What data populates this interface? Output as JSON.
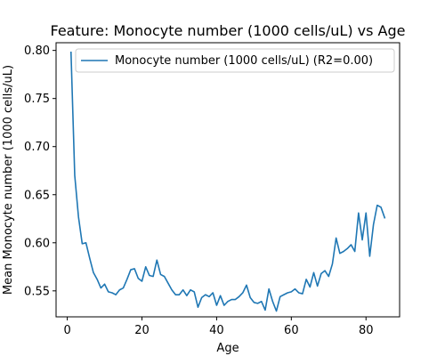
{
  "chart_data": {
    "type": "line",
    "title": "Feature: Monocyte number (1000 cells/uL) vs Age",
    "xlabel": "Age",
    "ylabel": "Mean Monocyte number (1000 cells/uL)",
    "xlim": [
      -3,
      89
    ],
    "ylim": [
      0.523,
      0.808
    ],
    "xticks": [
      0,
      20,
      40,
      60,
      80
    ],
    "yticks": [
      0.55,
      0.6,
      0.65,
      0.7,
      0.75,
      0.8
    ],
    "ytick_labels": [
      "0.55",
      "0.60",
      "0.65",
      "0.70",
      "0.75",
      "0.80"
    ],
    "grid": false,
    "legend_position": "top-right",
    "line_color": "#1f77b4",
    "series": [
      {
        "name": "Monocyte number (1000 cells/uL) (R2=0.00)",
        "x": [
          1,
          2,
          3,
          4,
          5,
          6,
          7,
          8,
          9,
          10,
          11,
          12,
          13,
          14,
          15,
          16,
          17,
          18,
          19,
          20,
          21,
          22,
          23,
          24,
          25,
          26,
          27,
          28,
          29,
          30,
          31,
          32,
          33,
          34,
          35,
          36,
          37,
          38,
          39,
          40,
          41,
          42,
          43,
          44,
          45,
          46,
          47,
          48,
          49,
          50,
          51,
          52,
          53,
          54,
          55,
          56,
          57,
          58,
          59,
          60,
          61,
          62,
          63,
          64,
          65,
          66,
          67,
          68,
          69,
          70,
          71,
          72,
          73,
          74,
          75,
          76,
          77,
          78,
          79,
          80,
          81,
          82,
          83,
          84,
          85
        ],
        "y": [
          0.798,
          0.67,
          0.627,
          0.599,
          0.6,
          0.584,
          0.569,
          0.562,
          0.553,
          0.557,
          0.549,
          0.548,
          0.546,
          0.551,
          0.553,
          0.562,
          0.572,
          0.573,
          0.563,
          0.56,
          0.575,
          0.566,
          0.565,
          0.582,
          0.567,
          0.565,
          0.558,
          0.551,
          0.546,
          0.546,
          0.551,
          0.545,
          0.551,
          0.549,
          0.533,
          0.543,
          0.546,
          0.544,
          0.548,
          0.535,
          0.545,
          0.535,
          0.539,
          0.541,
          0.541,
          0.544,
          0.548,
          0.556,
          0.543,
          0.538,
          0.537,
          0.539,
          0.53,
          0.552,
          0.539,
          0.529,
          0.544,
          0.546,
          0.548,
          0.549,
          0.552,
          0.548,
          0.547,
          0.562,
          0.554,
          0.569,
          0.555,
          0.568,
          0.571,
          0.565,
          0.578,
          0.605,
          0.589,
          0.591,
          0.594,
          0.598,
          0.591,
          0.631,
          0.603,
          0.631,
          0.586,
          0.619,
          0.639,
          0.637,
          0.626
        ]
      }
    ]
  }
}
